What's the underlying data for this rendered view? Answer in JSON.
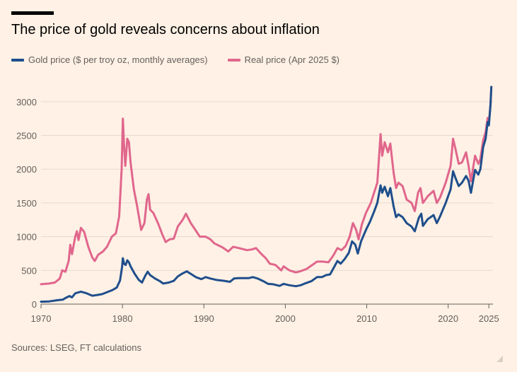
{
  "header": {
    "title": "The price of gold reveals concerns about inflation"
  },
  "footer": {
    "source": "Sources: LSEG, FT calculations"
  },
  "chart_data": {
    "type": "line",
    "title": "The price of gold reveals concerns about inflation",
    "xlabel": "",
    "ylabel": "",
    "xlim": [
      1970,
      2025.5
    ],
    "ylim": [
      0,
      3250
    ],
    "grid": true,
    "legend_position": "top-left",
    "x_ticks": [
      1970,
      1980,
      1990,
      2000,
      2010,
      2020,
      2025
    ],
    "x_tick_labels": [
      "1970",
      "1980",
      "1990",
      "2000",
      "2010",
      "2020",
      "2025"
    ],
    "y_ticks": [
      0,
      500,
      1000,
      1500,
      2000,
      2500,
      3000
    ],
    "y_tick_labels": [
      "0",
      "500",
      "1000",
      "1500",
      "2000",
      "2500",
      "3000"
    ],
    "series": [
      {
        "name": "Gold price ($ per troy oz, monthly averages)",
        "color": "#1F4E8C",
        "points": [
          [
            1970,
            36
          ],
          [
            1971,
            40
          ],
          [
            1972,
            58
          ],
          [
            1972.7,
            67
          ],
          [
            1973,
            90
          ],
          [
            1973.5,
            120
          ],
          [
            1973.8,
            100
          ],
          [
            1974.2,
            160
          ],
          [
            1974.9,
            185
          ],
          [
            1975.5,
            165
          ],
          [
            1976.3,
            125
          ],
          [
            1976.9,
            135
          ],
          [
            1977.5,
            148
          ],
          [
            1978,
            172
          ],
          [
            1978.8,
            210
          ],
          [
            1979.3,
            245
          ],
          [
            1979.7,
            350
          ],
          [
            1979.95,
            550
          ],
          [
            1980.05,
            680
          ],
          [
            1980.2,
            600
          ],
          [
            1980.4,
            580
          ],
          [
            1980.6,
            650
          ],
          [
            1980.8,
            620
          ],
          [
            1981,
            560
          ],
          [
            1981.5,
            450
          ],
          [
            1982,
            360
          ],
          [
            1982.4,
            320
          ],
          [
            1982.8,
            420
          ],
          [
            1983.1,
            480
          ],
          [
            1983.4,
            430
          ],
          [
            1984,
            380
          ],
          [
            1984.6,
            340
          ],
          [
            1985,
            305
          ],
          [
            1985.7,
            320
          ],
          [
            1986.3,
            345
          ],
          [
            1986.8,
            410
          ],
          [
            1987.3,
            450
          ],
          [
            1987.9,
            485
          ],
          [
            1988.5,
            440
          ],
          [
            1989,
            400
          ],
          [
            1989.7,
            370
          ],
          [
            1990.2,
            400
          ],
          [
            1990.8,
            380
          ],
          [
            1991.5,
            360
          ],
          [
            1992.5,
            345
          ],
          [
            1993.2,
            330
          ],
          [
            1993.7,
            380
          ],
          [
            1994.3,
            385
          ],
          [
            1995.5,
            385
          ],
          [
            1996,
            400
          ],
          [
            1996.6,
            380
          ],
          [
            1997.3,
            340
          ],
          [
            1997.9,
            300
          ],
          [
            1998.5,
            295
          ],
          [
            1999.3,
            270
          ],
          [
            1999.8,
            300
          ],
          [
            2000.5,
            280
          ],
          [
            2001.3,
            265
          ],
          [
            2001.9,
            280
          ],
          [
            2002.5,
            310
          ],
          [
            2003.2,
            340
          ],
          [
            2003.9,
            400
          ],
          [
            2004.5,
            400
          ],
          [
            2005,
            430
          ],
          [
            2005.5,
            440
          ],
          [
            2006,
            550
          ],
          [
            2006.4,
            640
          ],
          [
            2006.8,
            600
          ],
          [
            2007.3,
            670
          ],
          [
            2007.8,
            760
          ],
          [
            2008.2,
            930
          ],
          [
            2008.6,
            880
          ],
          [
            2008.9,
            750
          ],
          [
            2009.3,
            930
          ],
          [
            2009.9,
            1100
          ],
          [
            2010.4,
            1220
          ],
          [
            2010.9,
            1370
          ],
          [
            2011.3,
            1500
          ],
          [
            2011.7,
            1760
          ],
          [
            2011.9,
            1650
          ],
          [
            2012.2,
            1740
          ],
          [
            2012.6,
            1600
          ],
          [
            2012.9,
            1720
          ],
          [
            2013.3,
            1450
          ],
          [
            2013.6,
            1290
          ],
          [
            2013.9,
            1330
          ],
          [
            2014.4,
            1290
          ],
          [
            2014.9,
            1200
          ],
          [
            2015.5,
            1150
          ],
          [
            2015.9,
            1080
          ],
          [
            2016.4,
            1280
          ],
          [
            2016.7,
            1340
          ],
          [
            2016.9,
            1160
          ],
          [
            2017.5,
            1260
          ],
          [
            2018.2,
            1320
          ],
          [
            2018.6,
            1200
          ],
          [
            2019,
            1300
          ],
          [
            2019.7,
            1500
          ],
          [
            2020.3,
            1700
          ],
          [
            2020.6,
            1970
          ],
          [
            2020.9,
            1870
          ],
          [
            2021.3,
            1750
          ],
          [
            2021.7,
            1800
          ],
          [
            2022.2,
            1900
          ],
          [
            2022.5,
            1830
          ],
          [
            2022.8,
            1650
          ],
          [
            2023.3,
            1990
          ],
          [
            2023.7,
            1920
          ],
          [
            2023.95,
            2000
          ],
          [
            2024.3,
            2330
          ],
          [
            2024.6,
            2450
          ],
          [
            2024.85,
            2700
          ],
          [
            2025,
            2650
          ],
          [
            2025.2,
            2950
          ],
          [
            2025.3,
            3220
          ]
        ]
      },
      {
        "name": "Real price (Apr 2025 $)",
        "color": "#E0668C",
        "points": [
          [
            1970,
            295
          ],
          [
            1971,
            305
          ],
          [
            1971.7,
            320
          ],
          [
            1972.3,
            380
          ],
          [
            1972.6,
            500
          ],
          [
            1973,
            480
          ],
          [
            1973.4,
            640
          ],
          [
            1973.6,
            880
          ],
          [
            1973.8,
            740
          ],
          [
            1974.2,
            1000
          ],
          [
            1974.4,
            1080
          ],
          [
            1974.6,
            950
          ],
          [
            1974.9,
            1130
          ],
          [
            1975.3,
            1070
          ],
          [
            1975.8,
            850
          ],
          [
            1976.3,
            690
          ],
          [
            1976.6,
            640
          ],
          [
            1977,
            730
          ],
          [
            1977.6,
            780
          ],
          [
            1978.1,
            850
          ],
          [
            1978.7,
            1000
          ],
          [
            1979.2,
            1050
          ],
          [
            1979.6,
            1300
          ],
          [
            1979.9,
            2000
          ],
          [
            1980.05,
            2750
          ],
          [
            1980.2,
            2350
          ],
          [
            1980.35,
            2050
          ],
          [
            1980.6,
            2450
          ],
          [
            1980.8,
            2400
          ],
          [
            1981,
            2100
          ],
          [
            1981.4,
            1700
          ],
          [
            1981.8,
            1450
          ],
          [
            1982.3,
            1100
          ],
          [
            1982.7,
            1200
          ],
          [
            1983,
            1550
          ],
          [
            1983.2,
            1630
          ],
          [
            1983.4,
            1400
          ],
          [
            1983.8,
            1350
          ],
          [
            1984.4,
            1190
          ],
          [
            1984.9,
            1030
          ],
          [
            1985.3,
            920
          ],
          [
            1985.8,
            960
          ],
          [
            1986.3,
            970
          ],
          [
            1986.8,
            1150
          ],
          [
            1987.4,
            1250
          ],
          [
            1987.8,
            1340
          ],
          [
            1988.4,
            1200
          ],
          [
            1988.9,
            1110
          ],
          [
            1989.5,
            1000
          ],
          [
            1990.2,
            1000
          ],
          [
            1990.8,
            960
          ],
          [
            1991.3,
            900
          ],
          [
            1992.3,
            840
          ],
          [
            1993,
            780
          ],
          [
            1993.6,
            850
          ],
          [
            1994.3,
            830
          ],
          [
            1995.3,
            800
          ],
          [
            1995.9,
            810
          ],
          [
            1996.4,
            830
          ],
          [
            1997,
            750
          ],
          [
            1997.6,
            680
          ],
          [
            1998.1,
            600
          ],
          [
            1998.8,
            580
          ],
          [
            1999.5,
            500
          ],
          [
            1999.8,
            560
          ],
          [
            2000.5,
            500
          ],
          [
            2001.3,
            470
          ],
          [
            2001.9,
            490
          ],
          [
            2002.6,
            520
          ],
          [
            2003.2,
            570
          ],
          [
            2003.9,
            630
          ],
          [
            2004.6,
            630
          ],
          [
            2005.3,
            620
          ],
          [
            2005.9,
            720
          ],
          [
            2006.4,
            830
          ],
          [
            2006.9,
            800
          ],
          [
            2007.4,
            860
          ],
          [
            2007.9,
            1000
          ],
          [
            2008.3,
            1200
          ],
          [
            2008.7,
            1100
          ],
          [
            2009,
            960
          ],
          [
            2009.4,
            1180
          ],
          [
            2009.9,
            1350
          ],
          [
            2010.5,
            1500
          ],
          [
            2010.9,
            1650
          ],
          [
            2011.3,
            1800
          ],
          [
            2011.7,
            2520
          ],
          [
            2011.9,
            2200
          ],
          [
            2012.2,
            2400
          ],
          [
            2012.6,
            2250
          ],
          [
            2012.9,
            2380
          ],
          [
            2013.3,
            1950
          ],
          [
            2013.6,
            1720
          ],
          [
            2013.9,
            1800
          ],
          [
            2014.4,
            1750
          ],
          [
            2014.9,
            1550
          ],
          [
            2015.5,
            1500
          ],
          [
            2015.9,
            1380
          ],
          [
            2016.3,
            1650
          ],
          [
            2016.6,
            1720
          ],
          [
            2016.9,
            1500
          ],
          [
            2017.5,
            1600
          ],
          [
            2018.2,
            1680
          ],
          [
            2018.6,
            1500
          ],
          [
            2019,
            1580
          ],
          [
            2019.7,
            1800
          ],
          [
            2020.3,
            2050
          ],
          [
            2020.6,
            2450
          ],
          [
            2020.9,
            2300
          ],
          [
            2021.3,
            2080
          ],
          [
            2021.7,
            2100
          ],
          [
            2022.2,
            2250
          ],
          [
            2022.5,
            2050
          ],
          [
            2022.8,
            1820
          ],
          [
            2023.3,
            2200
          ],
          [
            2023.7,
            2080
          ],
          [
            2023.95,
            2150
          ],
          [
            2024.3,
            2430
          ],
          [
            2024.6,
            2550
          ],
          [
            2024.85,
            2760
          ],
          [
            2025,
            2680
          ],
          [
            2025.2,
            2950
          ],
          [
            2025.3,
            3220
          ]
        ]
      }
    ]
  }
}
